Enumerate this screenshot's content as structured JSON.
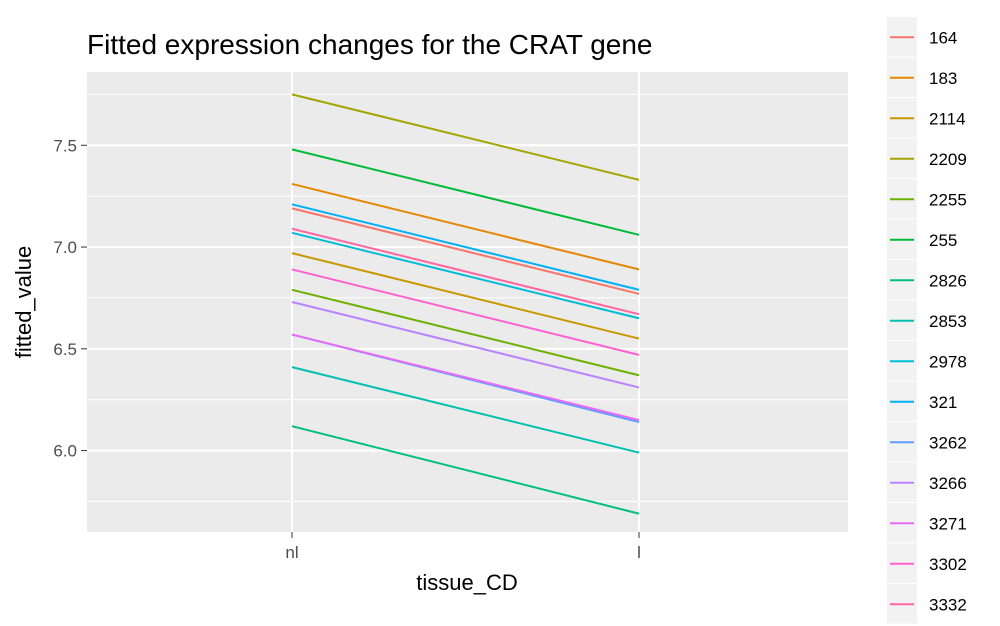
{
  "chart_data": {
    "type": "line",
    "title": "Fitted expression changes for the CRAT gene",
    "xlabel": "tissue_CD",
    "ylabel": "fitted_value",
    "categories": [
      "nl",
      "l"
    ],
    "ylim": [
      5.6,
      7.86
    ],
    "yticks": [
      6.0,
      6.5,
      7.0,
      7.5
    ],
    "grid": true,
    "legend_position": "right",
    "series": [
      {
        "name": "164",
        "color": "#F8766D",
        "values": [
          7.19,
          6.77
        ]
      },
      {
        "name": "183",
        "color": "#E58700",
        "values": [
          7.31,
          6.89
        ]
      },
      {
        "name": "2114",
        "color": "#C99800",
        "values": [
          6.97,
          6.55
        ]
      },
      {
        "name": "2209",
        "color": "#A3A500",
        "values": [
          7.75,
          7.33
        ]
      },
      {
        "name": "2255",
        "color": "#6BB100",
        "values": [
          6.79,
          6.37
        ]
      },
      {
        "name": "255",
        "color": "#00BA38",
        "values": [
          7.48,
          7.06
        ]
      },
      {
        "name": "2826",
        "color": "#00BF7D",
        "values": [
          6.12,
          5.69
        ]
      },
      {
        "name": "2853",
        "color": "#00C0AF",
        "values": [
          6.41,
          5.99
        ]
      },
      {
        "name": "2978",
        "color": "#00BCD8",
        "values": [
          7.07,
          6.65
        ]
      },
      {
        "name": "321",
        "color": "#00B0F6",
        "values": [
          7.21,
          6.79
        ]
      },
      {
        "name": "3262",
        "color": "#619CFF",
        "values": [
          6.57,
          6.14
        ]
      },
      {
        "name": "3266",
        "color": "#B983FF",
        "values": [
          6.73,
          6.31
        ]
      },
      {
        "name": "3271",
        "color": "#E76BF3",
        "values": [
          6.57,
          6.15
        ]
      },
      {
        "name": "3302",
        "color": "#FD61D1",
        "values": [
          6.89,
          6.47
        ]
      },
      {
        "name": "3332",
        "color": "#FF67A4",
        "values": [
          7.09,
          6.67
        ]
      }
    ]
  }
}
